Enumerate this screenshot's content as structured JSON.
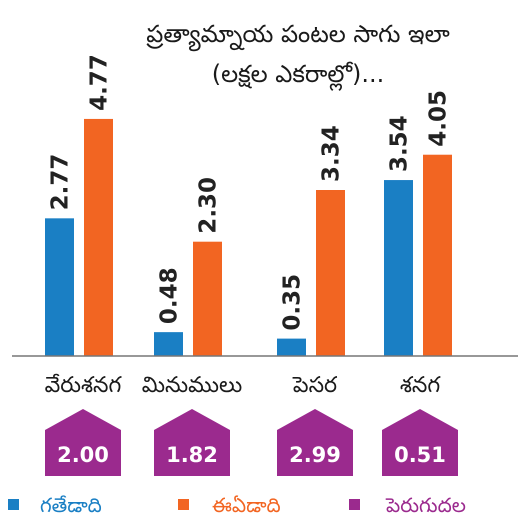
{
  "chart_data": {
    "type": "bar",
    "title": "ప్రత్యామ్నాయ పంటల సాగు ఇలా",
    "subtitle": "(లక్షల ఎకరాల్లో)...",
    "categories": [
      "వేరుశనగ",
      "మినుములు",
      "పెసర",
      "శనగ"
    ],
    "series": [
      {
        "name": "గతేడాది",
        "color": "#1a7fc4",
        "values": [
          2.77,
          0.48,
          0.35,
          3.54
        ]
      },
      {
        "name": "ఈఏడాది",
        "color": "#f26522",
        "values": [
          4.77,
          2.3,
          3.34,
          4.05
        ]
      }
    ],
    "increase": {
      "name": "పెరుగుదల",
      "color": "#9b2a8e",
      "values": [
        "2.00",
        "1.82",
        "2.99",
        "0.51"
      ]
    },
    "value_labels": [
      [
        "2.77",
        "4.77"
      ],
      [
        "0.48",
        "2.30"
      ],
      [
        "0.35",
        "3.34"
      ],
      [
        "3.54",
        "4.05"
      ]
    ],
    "legend_position": "bottom",
    "grid": false
  }
}
